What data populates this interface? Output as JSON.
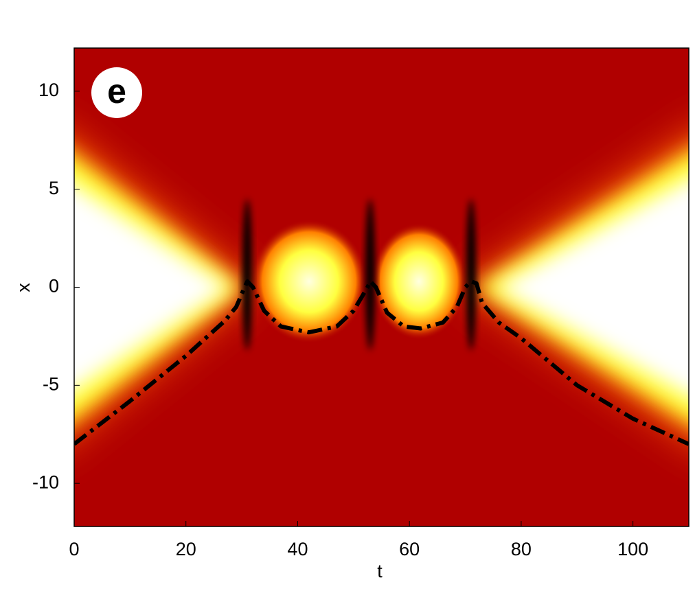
{
  "chart_data": {
    "type": "line",
    "annotation": "e",
    "xlabel": "t",
    "ylabel": "x",
    "x": [
      0,
      10,
      20,
      27,
      29,
      30.5,
      31,
      32,
      34,
      37,
      42,
      47,
      50,
      52.5,
      53,
      54,
      56,
      59,
      62,
      66,
      68.5,
      70,
      71,
      72,
      73,
      76,
      80,
      90,
      100,
      110
    ],
    "values": [
      -8,
      -5.8,
      -3.5,
      -1.7,
      -1,
      0,
      0.3,
      0,
      -1.2,
      -2,
      -2.3,
      -2,
      -1.2,
      0,
      0.3,
      0,
      -1.3,
      -2,
      -2.1,
      -1.8,
      -1,
      0,
      0.3,
      0.2,
      -0.8,
      -1.8,
      -2.6,
      -5,
      -6.7,
      -8
    ],
    "color": "#000000",
    "xlim": [
      0,
      110
    ],
    "xticks": [
      0,
      20,
      40,
      60,
      80,
      100
    ],
    "ylim": [
      -12.2,
      12.2
    ],
    "yticks": [
      -10,
      -5,
      0,
      5,
      10
    ]
  }
}
